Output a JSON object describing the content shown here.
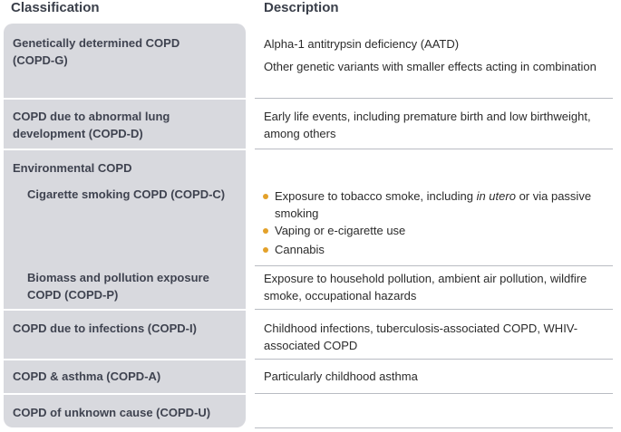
{
  "headers": {
    "classification": "Classification",
    "description": "Description"
  },
  "rows": {
    "g": {
      "class_line1": "Genetically determined COPD",
      "class_line2": "(COPD-G)",
      "desc1": "Alpha-1 antitrypsin deficiency (AATD)",
      "desc2": "Other genetic variants with smaller effects acting in combination"
    },
    "d": {
      "class_line1": "COPD due to abnormal lung",
      "class_line2": "development (COPD-D)",
      "desc1": "Early life events, including premature birth and low birthweight, among others"
    },
    "env": {
      "title": "Environmental COPD",
      "c_label": "Cigarette smoking COPD (COPD-C)",
      "c_bullet1_pre": "Exposure to tobacco smoke, including ",
      "c_bullet1_em": "in utero",
      "c_bullet1_post": " or via passive smoking",
      "c_bullet2": "Vaping or e-cigarette use",
      "c_bullet3": "Cannabis",
      "p_label_line1": "Biomass and pollution exposure",
      "p_label_line2": "COPD (COPD-P)",
      "p_desc": "Exposure to household pollution, ambient air pollution, wildfire smoke, occupational hazards"
    },
    "i": {
      "class_line1": "COPD due to infections (COPD-I)",
      "desc1": "Childhood infections, tuberculosis-associated COPD, WHIV-associated COPD"
    },
    "a": {
      "class_line1": "COPD & asthma (COPD-A)",
      "desc1": "Particularly childhood asthma"
    },
    "u": {
      "class_line1": "COPD of unknown cause (COPD-U)"
    }
  },
  "colors": {
    "left_panel": "#d8d9de",
    "bullet": "#e3a12a",
    "header_text": "#3a3f4a"
  }
}
